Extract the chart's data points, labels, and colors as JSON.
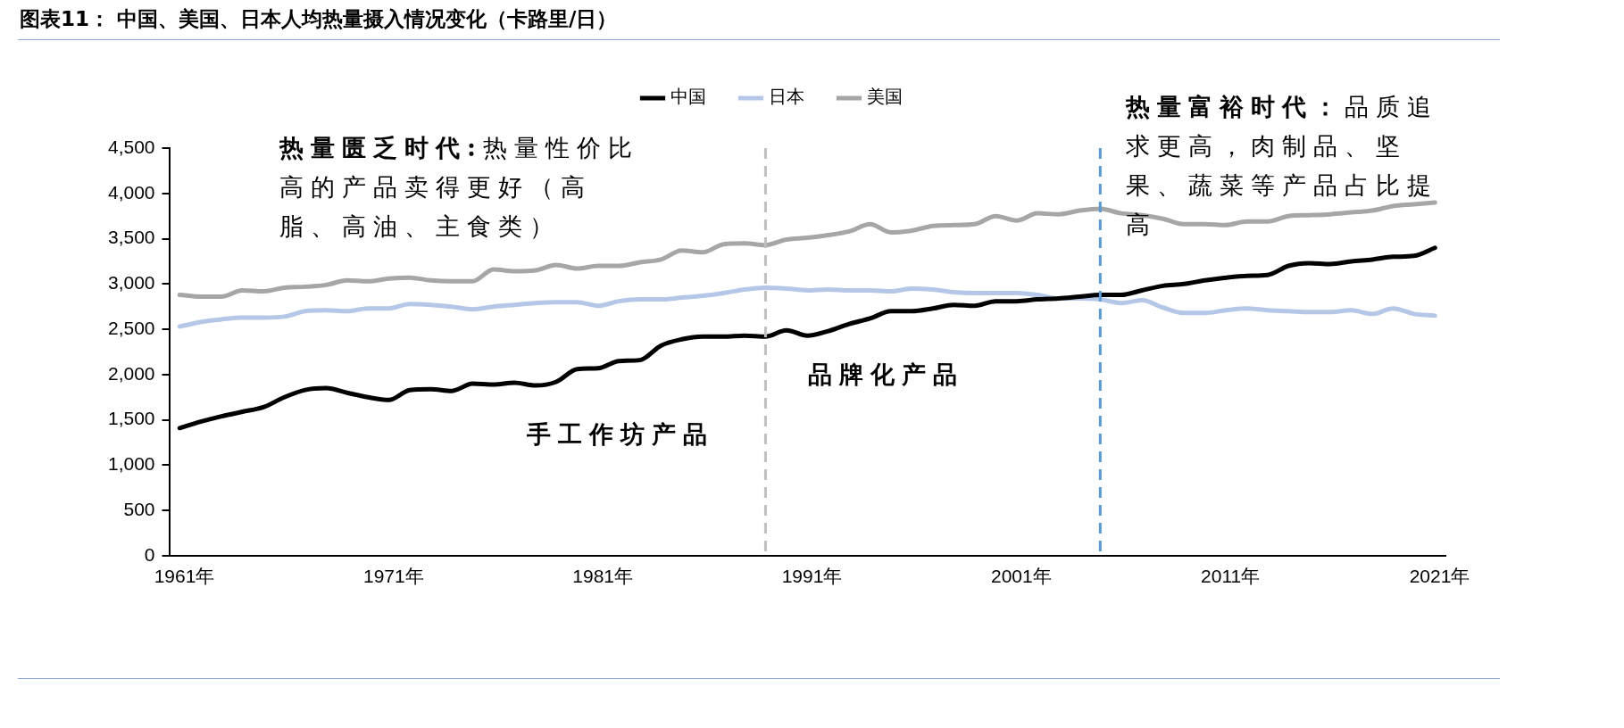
{
  "chart_data": {
    "type": "line",
    "title": "图表11：  中国、美国、日本人均热量摄入情况变化（卡路里/日）",
    "x": [
      1961,
      1962,
      1963,
      1964,
      1965,
      1966,
      1967,
      1968,
      1969,
      1970,
      1971,
      1972,
      1973,
      1974,
      1975,
      1976,
      1977,
      1978,
      1979,
      1980,
      1981,
      1982,
      1983,
      1984,
      1985,
      1986,
      1987,
      1988,
      1989,
      1990,
      1991,
      1992,
      1993,
      1994,
      1995,
      1996,
      1997,
      1998,
      1999,
      2000,
      2001,
      2002,
      2003,
      2004,
      2005,
      2006,
      2007,
      2008,
      2009,
      2010,
      2011,
      2012,
      2013,
      2014,
      2015,
      2016,
      2017,
      2018,
      2019,
      2020,
      2021
    ],
    "series": [
      {
        "name": "中国",
        "color": "#000000",
        "values": [
          1410,
          1480,
          1540,
          1590,
          1640,
          1750,
          1830,
          1850,
          1800,
          1750,
          1720,
          1830,
          1840,
          1820,
          1900,
          1890,
          1910,
          1880,
          1920,
          2060,
          2070,
          2150,
          2160,
          2320,
          2390,
          2420,
          2420,
          2430,
          2420,
          2490,
          2430,
          2480,
          2560,
          2620,
          2700,
          2700,
          2730,
          2770,
          2760,
          2810,
          2810,
          2830,
          2840,
          2860,
          2880,
          2880,
          2930,
          2980,
          3000,
          3040,
          3070,
          3090,
          3100,
          3200,
          3230,
          3220,
          3250,
          3270,
          3300,
          3310,
          3400
        ]
      },
      {
        "name": "日本",
        "color": "#b4c7e7",
        "values": [
          2530,
          2580,
          2610,
          2630,
          2630,
          2640,
          2700,
          2710,
          2700,
          2730,
          2730,
          2780,
          2770,
          2750,
          2720,
          2750,
          2770,
          2790,
          2800,
          2800,
          2760,
          2810,
          2830,
          2830,
          2850,
          2870,
          2900,
          2940,
          2960,
          2950,
          2930,
          2940,
          2930,
          2930,
          2920,
          2950,
          2940,
          2910,
          2900,
          2900,
          2900,
          2880,
          2840,
          2840,
          2830,
          2790,
          2820,
          2740,
          2680,
          2680,
          2710,
          2730,
          2710,
          2700,
          2690,
          2690,
          2710,
          2670,
          2730,
          2670,
          2650
        ]
      },
      {
        "name": "美国",
        "color": "#a6a6a6",
        "values": [
          2880,
          2860,
          2860,
          2930,
          2920,
          2960,
          2970,
          2990,
          3040,
          3030,
          3060,
          3070,
          3040,
          3030,
          3030,
          3160,
          3140,
          3150,
          3210,
          3170,
          3200,
          3200,
          3240,
          3270,
          3370,
          3350,
          3440,
          3450,
          3430,
          3490,
          3510,
          3540,
          3580,
          3660,
          3570,
          3590,
          3640,
          3650,
          3660,
          3750,
          3700,
          3780,
          3770,
          3810,
          3830,
          3780,
          3760,
          3720,
          3660,
          3660,
          3650,
          3690,
          3690,
          3750,
          3760,
          3770,
          3790,
          3810,
          3860,
          3880,
          3900
        ]
      }
    ],
    "xlim": [
      1960.5,
      2021.5
    ],
    "xticks": [
      {
        "value": 1961,
        "label": "1961年"
      },
      {
        "value": 1971,
        "label": "1971年"
      },
      {
        "value": 1981,
        "label": "1981年"
      },
      {
        "value": 1991,
        "label": "1991年"
      },
      {
        "value": 2001,
        "label": "2001年"
      },
      {
        "value": 2011,
        "label": "2011年"
      },
      {
        "value": 2021,
        "label": "2021年"
      }
    ],
    "ylim": [
      0,
      4500
    ],
    "yticks": [
      0,
      500,
      {
        "value": 1000,
        "label": "1,000"
      },
      {
        "value": 1500,
        "label": "1,500"
      },
      {
        "value": 2000,
        "label": "2,000"
      },
      {
        "value": 2500,
        "label": "2,500"
      },
      {
        "value": 3000,
        "label": "3,000"
      },
      {
        "value": 3500,
        "label": "3,500"
      },
      {
        "value": 4000,
        "label": "4,000"
      },
      {
        "value": 4500,
        "label": "4,500"
      }
    ],
    "ref_lines": [
      {
        "axis": "x",
        "value": 1989,
        "color": "#bfbfbf",
        "line_style": "dashed"
      },
      {
        "axis": "x",
        "value": 2005,
        "color": "#5b9bd5",
        "line_style": "dashed"
      }
    ],
    "annotations": [
      "热量匮乏时代:",
      "热量性价比高的产品卖得更好（高脂、高油、主食类）",
      "手工作坊产品",
      "品牌化产品",
      "热量富裕时代：",
      "品质追求更高，肉制品、坚果、蔬菜等产品占比提高"
    ],
    "legend": "top",
    "grid": false,
    "marker": "none",
    "line_style": "solid"
  }
}
